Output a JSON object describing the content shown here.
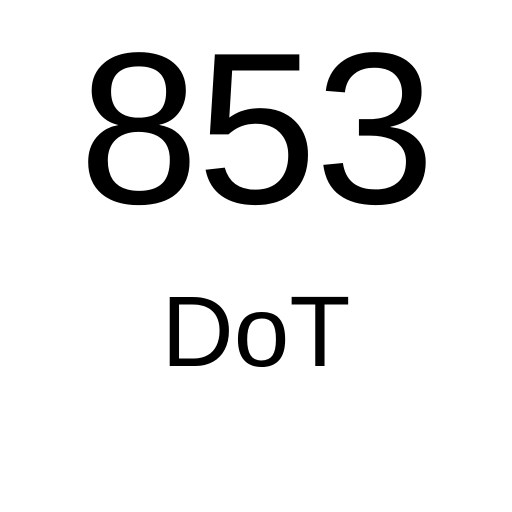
{
  "main": {
    "number": "853",
    "label": "DoT"
  },
  "colors": {
    "background": "#ffffff",
    "text": "#000000"
  }
}
